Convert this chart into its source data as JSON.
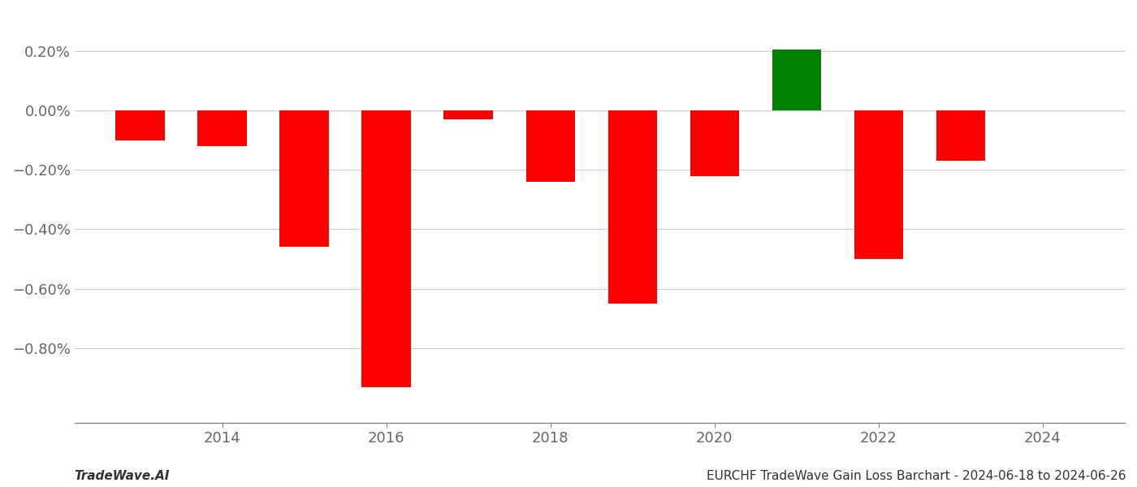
{
  "x_positions": [
    2013,
    2014,
    2015,
    2016,
    2017,
    2018,
    2019,
    2020,
    2021,
    2022,
    2023
  ],
  "values": [
    -0.1,
    -0.12,
    -0.46,
    -0.93,
    -0.03,
    -0.24,
    -0.65,
    -0.22,
    0.205,
    -0.5,
    -0.17
  ],
  "colors": [
    "#ff0000",
    "#ff0000",
    "#ff0000",
    "#ff0000",
    "#ff0000",
    "#ff0000",
    "#ff0000",
    "#ff0000",
    "#008000",
    "#ff0000",
    "#ff0000"
  ],
  "bar_width": 0.6,
  "xlim_min": 2012.2,
  "xlim_max": 2025.0,
  "ylim_min": -1.05,
  "ylim_max": 0.33,
  "footer_left": "TradeWave.AI",
  "footer_right": "EURCHF TradeWave Gain Loss Barchart - 2024-06-18 to 2024-06-26",
  "yticks": [
    -0.8,
    -0.6,
    -0.4,
    -0.2,
    0.0,
    0.2
  ],
  "ytick_labels": [
    "−0.80%",
    "−0.60%",
    "−0.40%",
    "−0.20%",
    "0.00%",
    "0.20%"
  ],
  "xticks": [
    2014,
    2016,
    2018,
    2020,
    2022,
    2024
  ],
  "background_color": "#ffffff",
  "grid_color": "#cccccc",
  "axis_color": "#888888",
  "tick_label_color": "#666666",
  "footer_fontsize": 11,
  "tick_fontsize": 13
}
